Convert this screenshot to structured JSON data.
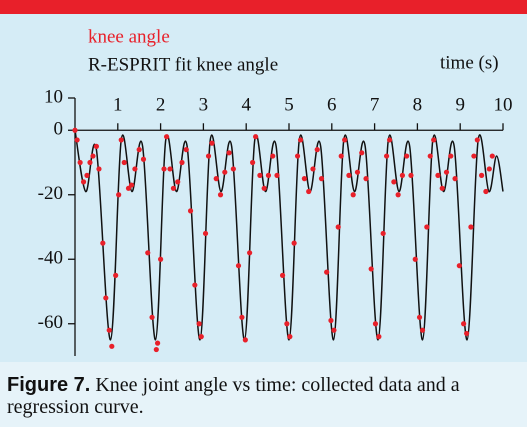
{
  "chart_data": {
    "type": "scatter-line",
    "x_label": "time (s)",
    "xlim": [
      0,
      10
    ],
    "xticks": [
      1,
      2,
      3,
      4,
      5,
      6,
      7,
      8,
      9,
      10
    ],
    "ylim": [
      -70,
      10
    ],
    "yticks": [
      10,
      0,
      -20,
      -40,
      -60
    ],
    "series": [
      {
        "name": "knee angle",
        "color": "#e8202a",
        "style": "dots",
        "x": [
          0,
          0.05,
          0.12,
          0.2,
          0.28,
          0.35,
          0.42,
          0.5,
          0.56,
          0.65,
          0.72,
          0.8,
          0.86,
          0.95,
          1.02,
          1.08,
          1.15,
          1.25,
          1.32,
          1.4,
          1.5,
          1.6,
          1.7,
          1.8,
          1.9,
          1.93,
          2.0,
          2.08,
          2.14,
          2.22,
          2.3,
          2.4,
          2.5,
          2.6,
          2.7,
          2.8,
          2.9,
          2.95,
          3.05,
          3.12,
          3.2,
          3.3,
          3.4,
          3.5,
          3.6,
          3.7,
          3.82,
          3.9,
          3.98,
          4.08,
          4.15,
          4.22,
          4.32,
          4.42,
          4.52,
          4.62,
          4.72,
          4.85,
          4.95,
          5.02,
          5.12,
          5.2,
          5.27,
          5.36,
          5.46,
          5.56,
          5.66,
          5.76,
          5.88,
          5.98,
          6.05,
          6.15,
          6.22,
          6.3,
          6.4,
          6.5,
          6.6,
          6.7,
          6.8,
          6.92,
          7.02,
          7.1,
          7.2,
          7.28,
          7.35,
          7.45,
          7.55,
          7.65,
          7.75,
          7.85,
          7.95,
          8.05,
          8.12,
          8.22,
          8.3,
          8.38,
          8.48,
          8.58,
          8.68,
          8.78,
          8.88,
          8.98,
          9.08,
          9.15,
          9.25,
          9.32,
          9.4,
          9.5,
          9.6,
          9.68,
          9.75
        ],
        "y": [
          0,
          -3,
          -10,
          -16,
          -14,
          -10,
          -8,
          -5,
          -12,
          -35,
          -52,
          -62,
          -67,
          -45,
          -20,
          -3,
          -10,
          -18,
          -17,
          -12,
          -6,
          -9,
          -38,
          -58,
          -68,
          -66,
          -40,
          -12,
          -2,
          -12,
          -18,
          -16,
          -10,
          -6,
          -25,
          -48,
          -60,
          -64,
          -32,
          -8,
          -4,
          -15,
          -20,
          -13,
          -7,
          -12,
          -42,
          -58,
          -65,
          -38,
          -10,
          -2,
          -14,
          -18,
          -14,
          -8,
          -14,
          -45,
          -60,
          -64,
          -35,
          -8,
          -3,
          -15,
          -19,
          -12,
          -6,
          -15,
          -44,
          -59,
          -62,
          -30,
          -8,
          -3,
          -14,
          -20,
          -13,
          -7,
          -15,
          -43,
          -60,
          -64,
          -32,
          -8,
          -3,
          -16,
          -20,
          -14,
          -8,
          -14,
          -40,
          -58,
          -62,
          -30,
          -8,
          -3,
          -14,
          -18,
          -13,
          -8,
          -15,
          -42,
          -60,
          -63,
          -30,
          -8,
          -3,
          -14,
          -19,
          -12,
          -8
        ]
      },
      {
        "name": "R-ESPRIT fit knee angle",
        "color": "#111111",
        "style": "line",
        "x": [
          0,
          0.25,
          0.5,
          0.83,
          1.08,
          1.33,
          1.58,
          1.88,
          2.12,
          2.37,
          2.62,
          2.92,
          3.16,
          3.41,
          3.66,
          3.96,
          4.2,
          4.45,
          4.7,
          5.0,
          5.24,
          5.49,
          5.74,
          6.04,
          6.28,
          6.53,
          6.78,
          7.08,
          7.32,
          7.57,
          7.82,
          8.12,
          8.36,
          8.61,
          8.86,
          9.16,
          9.42,
          9.67,
          9.85,
          10
        ],
        "y": [
          0,
          -19,
          -6,
          -65,
          -3,
          -19,
          -5,
          -65,
          -3,
          -19,
          -5,
          -65,
          -3,
          -19,
          -5,
          -65,
          -3,
          -19,
          -5,
          -65,
          -3,
          -19,
          -5,
          -65,
          -3,
          -19,
          -5,
          -65,
          -3,
          -19,
          -5,
          -65,
          -3,
          -19,
          -5,
          -65,
          -3,
          -19,
          -8,
          -19
        ]
      }
    ]
  },
  "caption": {
    "label": "Figure 7.",
    "text": "Knee joint angle vs time: collected data and a regression curve."
  }
}
